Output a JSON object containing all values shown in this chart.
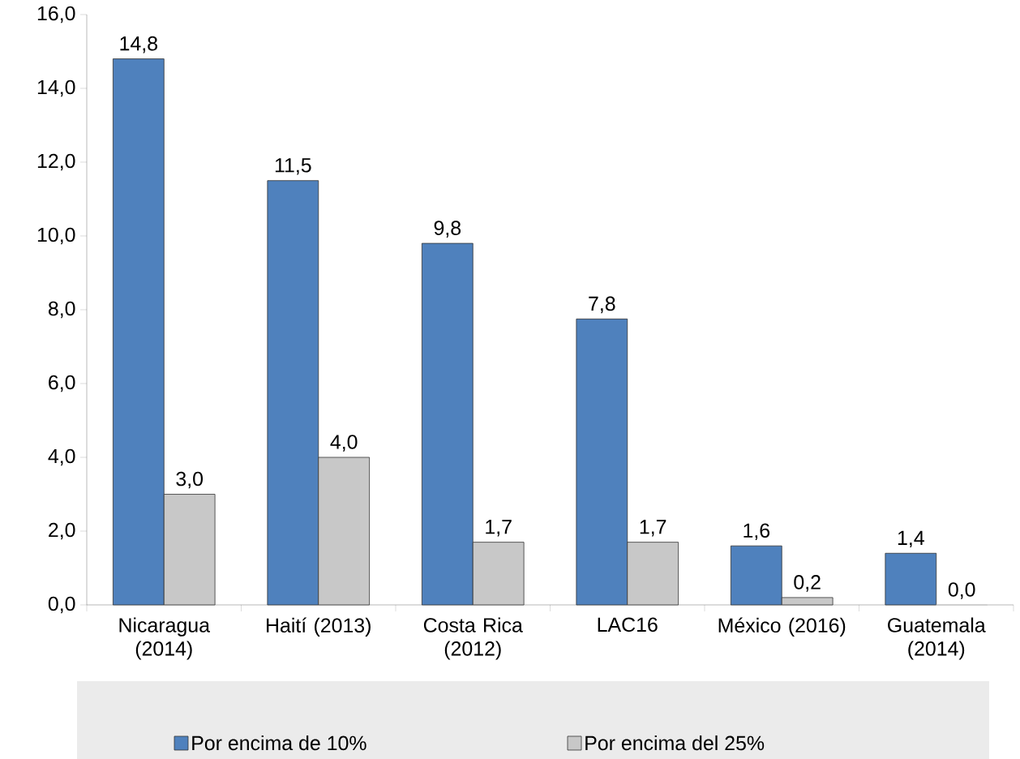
{
  "chart_data": {
    "type": "bar",
    "categories": [
      "Nicaragua (2014)",
      "Haití (2013)",
      "Costa Rica (2012)",
      "LAC16",
      "México (2016)",
      "Guatemala (2014)"
    ],
    "series": [
      {
        "name": "Por encima de 10%",
        "color": "#4f81bd",
        "values": [
          14.8,
          11.5,
          9.8,
          7.75,
          1.6,
          1.4
        ],
        "value_labels": [
          "14,8",
          "11,5",
          "9,8",
          "7,8",
          "1,6",
          "1,4"
        ]
      },
      {
        "name": "Por encima del 25%",
        "color": "#c8c8c8",
        "values": [
          3.0,
          4.0,
          1.7,
          1.7,
          0.2,
          0.0
        ],
        "value_labels": [
          "3,0",
          "4,0",
          "1,7",
          "1,7",
          "0,2",
          "0,0"
        ]
      }
    ],
    "ylim": [
      0,
      16
    ],
    "yticks": [
      {
        "value": 0,
        "label": "0,0"
      },
      {
        "value": 2,
        "label": "2,0"
      },
      {
        "value": 4,
        "label": "4,0"
      },
      {
        "value": 6,
        "label": "6,0"
      },
      {
        "value": 8,
        "label": "8,0"
      },
      {
        "value": 10,
        "label": "10,0"
      },
      {
        "value": 12,
        "label": "12,0"
      },
      {
        "value": 14,
        "label": "14,0"
      },
      {
        "value": 16,
        "label": "16,0"
      }
    ],
    "legend": "bottom"
  }
}
